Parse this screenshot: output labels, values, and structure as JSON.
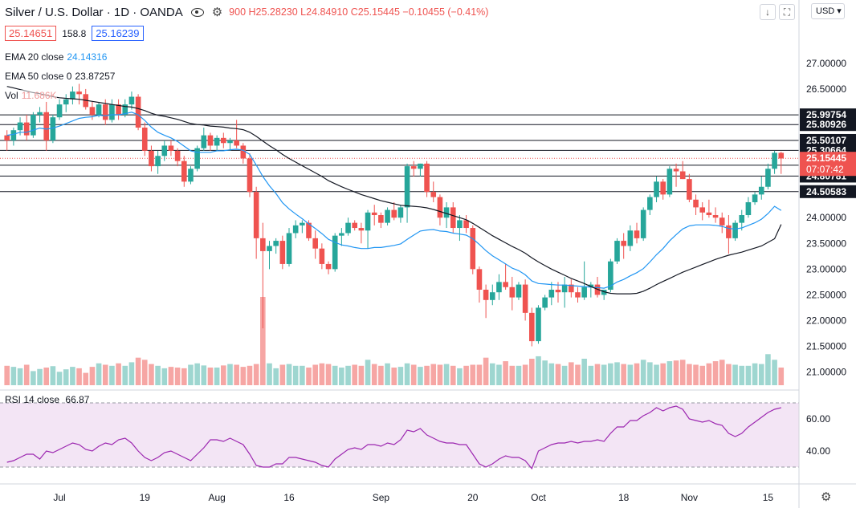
{
  "header": {
    "symbol": "Silver / U.S. Dollar · 1D · OANDA",
    "ohlc_open": "900",
    "ohlc_high": "H25.28230",
    "ohlc_low": "L24.84910",
    "ohlc_close": "C25.15445",
    "ohlc_change": "−0.10455 (−0.41%)",
    "bid": "25.14651",
    "spread": "158.8",
    "ask": "25.16239",
    "currency": "USD"
  },
  "legends": {
    "ema20_label": "EMA 20 close",
    "ema20_value": "24.14316",
    "ema50_label": "EMA 50 close 0",
    "ema50_value": "23.87257",
    "vol_label": "Vol",
    "vol_value": "11.686K",
    "rsi_label": "RSI 14 close",
    "rsi_value": "66.87"
  },
  "colors": {
    "up": "#26a69a",
    "down": "#ef5350",
    "up_vol": "#9ed6d0",
    "down_vol": "#f6a6a4",
    "ema20": "#2196f3",
    "ema50": "#131722",
    "rsi": "#9c27b0",
    "rsi_band": "#f3e5f5",
    "hline": "#131722",
    "last_price": "#ef5350"
  },
  "chart_data": [
    {
      "type": "candlestick",
      "title": "Silver / U.S. Dollar · 1D · OANDA",
      "y_ticks": [
        21.0,
        21.5,
        22.0,
        22.5,
        23.0,
        23.5,
        24.0,
        24.5,
        25.0,
        25.5,
        26.0,
        26.5,
        27.0
      ],
      "y_tick_labels": [
        "21.00000",
        "21.50000",
        "22.00000",
        "22.50000",
        "23.00000",
        "23.50000",
        "24.00000",
        "",
        "",
        "",
        "",
        "26.50000",
        "27.00000"
      ],
      "ylim": [
        20.9,
        27.45
      ],
      "x_tick_labels": [
        {
          "label": "Jul",
          "index": 8
        },
        {
          "label": "19",
          "index": 21
        },
        {
          "label": "Aug",
          "index": 32
        },
        {
          "label": "16",
          "index": 43
        },
        {
          "label": "Sep",
          "index": 57
        },
        {
          "label": "20",
          "index": 71
        },
        {
          "label": "Oct",
          "index": 81
        },
        {
          "label": "18",
          "index": 94
        },
        {
          "label": "Nov",
          "index": 104
        },
        {
          "label": "15",
          "index": 116
        }
      ],
      "horizontal_levels": [
        25.99754,
        25.80926,
        25.50107,
        25.30664,
        25.01937,
        24.80781,
        24.50583
      ],
      "level_labels": [
        "25.99754",
        "25.80926",
        "25.50107",
        "25.30664",
        "25.01937",
        "24.80781",
        "24.50583"
      ],
      "last_price": 25.15445,
      "last_price_label": "25.15445",
      "countdown": "07:07:42",
      "candles": [
        [
          25.6,
          25.7,
          25.3,
          25.5
        ],
        [
          25.5,
          25.75,
          25.4,
          25.7
        ],
        [
          25.7,
          25.95,
          25.6,
          25.85
        ],
        [
          25.85,
          26.0,
          25.5,
          25.6
        ],
        [
          25.6,
          26.05,
          25.55,
          26.0
        ],
        [
          26.0,
          26.15,
          25.85,
          26.05
        ],
        [
          26.05,
          26.25,
          25.3,
          25.5
        ],
        [
          25.5,
          26.0,
          25.45,
          25.95
        ],
        [
          25.95,
          26.3,
          25.9,
          26.2
        ],
        [
          26.2,
          26.4,
          26.05,
          26.3
        ],
        [
          26.3,
          26.55,
          26.2,
          26.45
        ],
        [
          26.45,
          26.6,
          26.2,
          26.4
        ],
        [
          26.4,
          26.5,
          26.1,
          26.15
        ],
        [
          26.15,
          26.25,
          25.9,
          26.0
        ],
        [
          26.0,
          26.25,
          25.95,
          26.2
        ],
        [
          26.2,
          26.3,
          25.8,
          25.9
        ],
        [
          25.9,
          26.3,
          25.85,
          26.2
        ],
        [
          26.2,
          26.3,
          25.9,
          26.0
        ],
        [
          26.0,
          26.3,
          25.95,
          26.2
        ],
        [
          26.2,
          26.45,
          26.1,
          26.35
        ],
        [
          26.35,
          26.4,
          25.7,
          25.75
        ],
        [
          25.75,
          25.85,
          25.2,
          25.3
        ],
        [
          25.3,
          25.4,
          24.9,
          25.0
        ],
        [
          25.0,
          25.3,
          24.85,
          25.2
        ],
        [
          25.2,
          25.5,
          25.1,
          25.4
        ],
        [
          25.4,
          25.5,
          25.2,
          25.3
        ],
        [
          25.3,
          25.35,
          25.0,
          25.1
        ],
        [
          25.1,
          25.2,
          24.6,
          24.7
        ],
        [
          24.7,
          25.0,
          24.65,
          24.95
        ],
        [
          24.95,
          25.4,
          24.9,
          25.35
        ],
        [
          25.35,
          25.75,
          25.3,
          25.6
        ],
        [
          25.6,
          25.65,
          25.3,
          25.4
        ],
        [
          25.4,
          25.6,
          25.3,
          25.55
        ],
        [
          25.55,
          25.65,
          25.35,
          25.45
        ],
        [
          25.45,
          25.55,
          25.3,
          25.5
        ],
        [
          25.5,
          25.9,
          25.35,
          25.4
        ],
        [
          25.4,
          25.45,
          25.05,
          25.15
        ],
        [
          25.15,
          25.25,
          24.4,
          24.5
        ],
        [
          24.5,
          24.6,
          23.2,
          23.6
        ],
        [
          23.6,
          23.9,
          21.85,
          23.35
        ],
        [
          23.35,
          23.55,
          23.0,
          23.45
        ],
        [
          23.45,
          23.6,
          23.3,
          23.55
        ],
        [
          23.55,
          23.65,
          23.0,
          23.1
        ],
        [
          23.1,
          23.8,
          23.05,
          23.7
        ],
        [
          23.7,
          23.95,
          23.6,
          23.85
        ],
        [
          23.85,
          23.95,
          23.7,
          23.9
        ],
        [
          23.9,
          23.95,
          23.55,
          23.6
        ],
        [
          23.6,
          23.75,
          23.2,
          23.4
        ],
        [
          23.4,
          23.5,
          23.0,
          23.1
        ],
        [
          23.1,
          23.15,
          22.9,
          23.0
        ],
        [
          23.0,
          23.7,
          22.95,
          23.65
        ],
        [
          23.65,
          23.8,
          23.45,
          23.7
        ],
        [
          23.7,
          24.0,
          23.65,
          23.9
        ],
        [
          23.9,
          23.95,
          23.75,
          23.8
        ],
        [
          23.8,
          23.9,
          23.5,
          23.75
        ],
        [
          23.75,
          24.15,
          23.4,
          24.1
        ],
        [
          24.1,
          24.25,
          23.85,
          24.05
        ],
        [
          24.05,
          24.1,
          23.8,
          23.9
        ],
        [
          23.9,
          24.2,
          23.85,
          24.15
        ],
        [
          24.15,
          24.3,
          23.95,
          24.0
        ],
        [
          24.0,
          24.25,
          23.9,
          24.2
        ],
        [
          24.2,
          25.05,
          23.9,
          25.0
        ],
        [
          25.0,
          25.1,
          24.8,
          24.95
        ],
        [
          24.95,
          25.05,
          24.8,
          25.05
        ],
        [
          25.05,
          25.1,
          24.4,
          24.5
        ],
        [
          24.5,
          24.7,
          24.3,
          24.4
        ],
        [
          24.4,
          24.45,
          23.85,
          24.0
        ],
        [
          24.0,
          24.3,
          23.8,
          24.2
        ],
        [
          24.2,
          24.3,
          23.7,
          23.8
        ],
        [
          23.8,
          24.05,
          23.55,
          23.95
        ],
        [
          23.95,
          24.05,
          23.7,
          23.8
        ],
        [
          23.8,
          23.85,
          22.9,
          23.0
        ],
        [
          23.0,
          23.05,
          22.35,
          22.6
        ],
        [
          22.6,
          22.7,
          22.05,
          22.4
        ],
        [
          22.4,
          22.7,
          22.3,
          22.55
        ],
        [
          22.55,
          22.9,
          22.4,
          22.75
        ],
        [
          22.75,
          23.1,
          22.6,
          22.65
        ],
        [
          22.65,
          22.85,
          22.2,
          22.45
        ],
        [
          22.45,
          22.75,
          22.4,
          22.7
        ],
        [
          22.7,
          22.8,
          22.0,
          22.15
        ],
        [
          22.15,
          22.25,
          21.5,
          21.6
        ],
        [
          21.6,
          22.3,
          21.55,
          22.25
        ],
        [
          22.25,
          22.5,
          22.2,
          22.45
        ],
        [
          22.45,
          22.75,
          22.3,
          22.6
        ],
        [
          22.6,
          22.75,
          22.35,
          22.55
        ],
        [
          22.55,
          22.85,
          22.25,
          22.7
        ],
        [
          22.7,
          22.8,
          22.45,
          22.55
        ],
        [
          22.55,
          22.65,
          22.35,
          22.45
        ],
        [
          22.45,
          23.15,
          22.4,
          22.65
        ],
        [
          22.65,
          22.75,
          22.45,
          22.7
        ],
        [
          22.7,
          22.85,
          22.45,
          22.5
        ],
        [
          22.5,
          22.6,
          22.4,
          22.6
        ],
        [
          22.6,
          23.2,
          22.55,
          23.15
        ],
        [
          23.15,
          23.6,
          23.1,
          23.55
        ],
        [
          23.55,
          23.7,
          23.2,
          23.45
        ],
        [
          23.45,
          23.85,
          23.35,
          23.75
        ],
        [
          23.75,
          23.9,
          23.5,
          23.6
        ],
        [
          23.6,
          24.2,
          23.55,
          24.15
        ],
        [
          24.15,
          24.45,
          24.05,
          24.4
        ],
        [
          24.4,
          24.8,
          24.3,
          24.7
        ],
        [
          24.7,
          24.75,
          24.35,
          24.45
        ],
        [
          24.45,
          25.0,
          24.4,
          24.95
        ],
        [
          24.95,
          25.05,
          24.6,
          24.9
        ],
        [
          24.9,
          25.1,
          24.75,
          24.75
        ],
        [
          24.75,
          24.85,
          24.3,
          24.35
        ],
        [
          24.35,
          24.45,
          24.05,
          24.2
        ],
        [
          24.2,
          24.3,
          23.95,
          24.1
        ],
        [
          24.1,
          24.35,
          24.0,
          24.05
        ],
        [
          24.05,
          24.2,
          23.9,
          24.0
        ],
        [
          24.0,
          24.1,
          23.7,
          23.85
        ],
        [
          23.85,
          24.05,
          23.3,
          23.6
        ],
        [
          23.6,
          23.95,
          23.55,
          23.9
        ],
        [
          23.9,
          24.15,
          23.75,
          24.05
        ],
        [
          24.05,
          24.4,
          24.0,
          24.3
        ],
        [
          24.3,
          24.5,
          24.25,
          24.45
        ],
        [
          24.45,
          24.8,
          24.35,
          24.6
        ],
        [
          24.6,
          25.05,
          24.55,
          24.95
        ],
        [
          24.95,
          25.3,
          24.85,
          25.26
        ],
        [
          25.26,
          25.28,
          24.85,
          25.15
        ]
      ],
      "ema20": [
        25.6,
        25.62,
        25.66,
        25.66,
        25.7,
        25.74,
        25.72,
        25.74,
        25.78,
        25.83,
        25.88,
        25.93,
        25.95,
        25.96,
        25.99,
        25.98,
        26.0,
        26.0,
        26.02,
        26.05,
        26.0,
        25.89,
        25.76,
        25.66,
        25.6,
        25.55,
        25.48,
        25.39,
        25.3,
        25.27,
        25.27,
        25.27,
        25.3,
        25.3,
        25.32,
        25.33,
        25.31,
        25.23,
        25.02,
        24.8,
        24.62,
        24.47,
        24.29,
        24.17,
        24.07,
        23.98,
        23.88,
        23.79,
        23.69,
        23.58,
        23.52,
        23.47,
        23.45,
        23.42,
        23.4,
        23.4,
        23.42,
        23.42,
        23.44,
        23.46,
        23.49,
        23.58,
        23.66,
        23.74,
        23.76,
        23.77,
        23.74,
        23.73,
        23.7,
        23.68,
        23.66,
        23.59,
        23.48,
        23.36,
        23.26,
        23.18,
        23.1,
        23.02,
        22.97,
        22.89,
        22.77,
        22.72,
        22.71,
        22.7,
        22.69,
        22.69,
        22.68,
        22.67,
        22.66,
        22.65,
        22.64,
        22.63,
        22.67,
        22.75,
        22.8,
        22.87,
        22.93,
        23.01,
        23.14,
        23.28,
        23.4,
        23.55,
        23.67,
        23.78,
        23.84,
        23.86,
        23.86,
        23.86,
        23.85,
        23.83,
        23.79,
        23.78,
        23.8,
        23.85,
        23.9,
        23.97,
        24.08,
        24.22,
        24.14
      ],
      "ema50": [
        26.55,
        26.52,
        26.49,
        26.46,
        26.43,
        26.41,
        26.38,
        26.35,
        26.33,
        26.32,
        26.31,
        26.3,
        26.28,
        26.26,
        26.24,
        26.22,
        26.2,
        26.18,
        26.16,
        26.15,
        26.12,
        26.08,
        26.03,
        25.99,
        25.97,
        25.94,
        25.91,
        25.87,
        25.83,
        25.81,
        25.8,
        25.78,
        25.77,
        25.76,
        25.74,
        25.73,
        25.71,
        25.66,
        25.58,
        25.49,
        25.4,
        25.32,
        25.23,
        25.15,
        25.08,
        25.01,
        24.94,
        24.87,
        24.8,
        24.72,
        24.66,
        24.6,
        24.55,
        24.5,
        24.45,
        24.41,
        24.37,
        24.33,
        24.3,
        24.27,
        24.24,
        24.23,
        24.22,
        24.21,
        24.19,
        24.16,
        24.12,
        24.08,
        24.04,
        24.0,
        23.96,
        23.89,
        23.81,
        23.73,
        23.65,
        23.58,
        23.51,
        23.44,
        23.38,
        23.31,
        23.22,
        23.14,
        23.07,
        23.0,
        22.94,
        22.88,
        22.82,
        22.77,
        22.72,
        22.66,
        22.61,
        22.56,
        22.53,
        22.52,
        22.52,
        22.52,
        22.53,
        22.57,
        22.63,
        22.7,
        22.76,
        22.82,
        22.88,
        22.94,
        22.99,
        23.04,
        23.09,
        23.14,
        23.19,
        23.23,
        23.27,
        23.3,
        23.33,
        23.37,
        23.41,
        23.45,
        23.52,
        23.59,
        23.87
      ],
      "volume": [
        0.55,
        0.52,
        0.48,
        0.58,
        0.4,
        0.46,
        0.5,
        0.54,
        0.38,
        0.45,
        0.52,
        0.48,
        0.35,
        0.52,
        0.62,
        0.58,
        0.55,
        0.62,
        0.55,
        0.65,
        0.78,
        0.72,
        0.6,
        0.55,
        0.48,
        0.52,
        0.5,
        0.48,
        0.58,
        0.62,
        0.56,
        0.5,
        0.5,
        0.56,
        0.6,
        0.58,
        0.52,
        0.55,
        0.6,
        2.5,
        0.62,
        0.48,
        0.58,
        0.6,
        0.55,
        0.55,
        0.5,
        0.58,
        0.62,
        0.6,
        0.55,
        0.5,
        0.55,
        0.58,
        0.55,
        0.72,
        0.6,
        0.55,
        0.62,
        0.5,
        0.52,
        0.62,
        0.58,
        0.52,
        0.55,
        0.6,
        0.58,
        0.6,
        0.55,
        0.48,
        0.55,
        0.58,
        0.58,
        0.78,
        0.62,
        0.58,
        0.68,
        0.55,
        0.55,
        0.58,
        0.75,
        0.82,
        0.7,
        0.62,
        0.6,
        0.55,
        0.65,
        0.58,
        0.75,
        0.55,
        0.6,
        0.58,
        0.62,
        0.65,
        0.6,
        0.58,
        0.62,
        0.72,
        0.65,
        0.58,
        0.62,
        0.68,
        0.7,
        0.72,
        0.6,
        0.58,
        0.55,
        0.62,
        0.68,
        0.72,
        0.6,
        0.58,
        0.55,
        0.55,
        0.62,
        0.6,
        0.88,
        0.72,
        0.5
      ]
    },
    {
      "type": "line",
      "title": "RSI 14 close",
      "y_ticks": [
        40,
        60
      ],
      "y_tick_labels": [
        "40.00",
        "60.00"
      ],
      "ylim": [
        22,
        74
      ],
      "bands": [
        30,
        70
      ],
      "values": [
        33,
        34,
        36,
        38,
        38,
        35,
        40,
        39,
        41,
        43,
        45,
        44,
        41,
        40,
        43,
        45,
        44,
        47,
        48,
        45,
        40,
        36,
        34,
        36,
        39,
        40,
        38,
        36,
        34,
        38,
        42,
        47,
        47,
        46,
        48,
        46,
        44,
        38,
        31,
        30,
        30,
        32,
        32,
        36,
        36,
        35,
        34,
        33,
        31,
        30,
        35,
        38,
        41,
        42,
        41,
        44,
        44,
        43,
        45,
        44,
        47,
        53,
        52,
        54,
        50,
        48,
        46,
        45,
        45,
        44,
        44,
        38,
        32,
        30,
        32,
        35,
        37,
        36,
        36,
        34,
        29,
        40,
        42,
        44,
        45,
        45,
        46,
        45,
        46,
        46,
        47,
        46,
        51,
        55,
        55,
        59,
        59,
        62,
        64,
        67,
        65,
        67,
        68,
        66,
        60,
        59,
        58,
        59,
        57,
        56,
        51,
        49,
        51,
        55,
        58,
        61,
        64,
        66,
        67
      ]
    }
  ]
}
